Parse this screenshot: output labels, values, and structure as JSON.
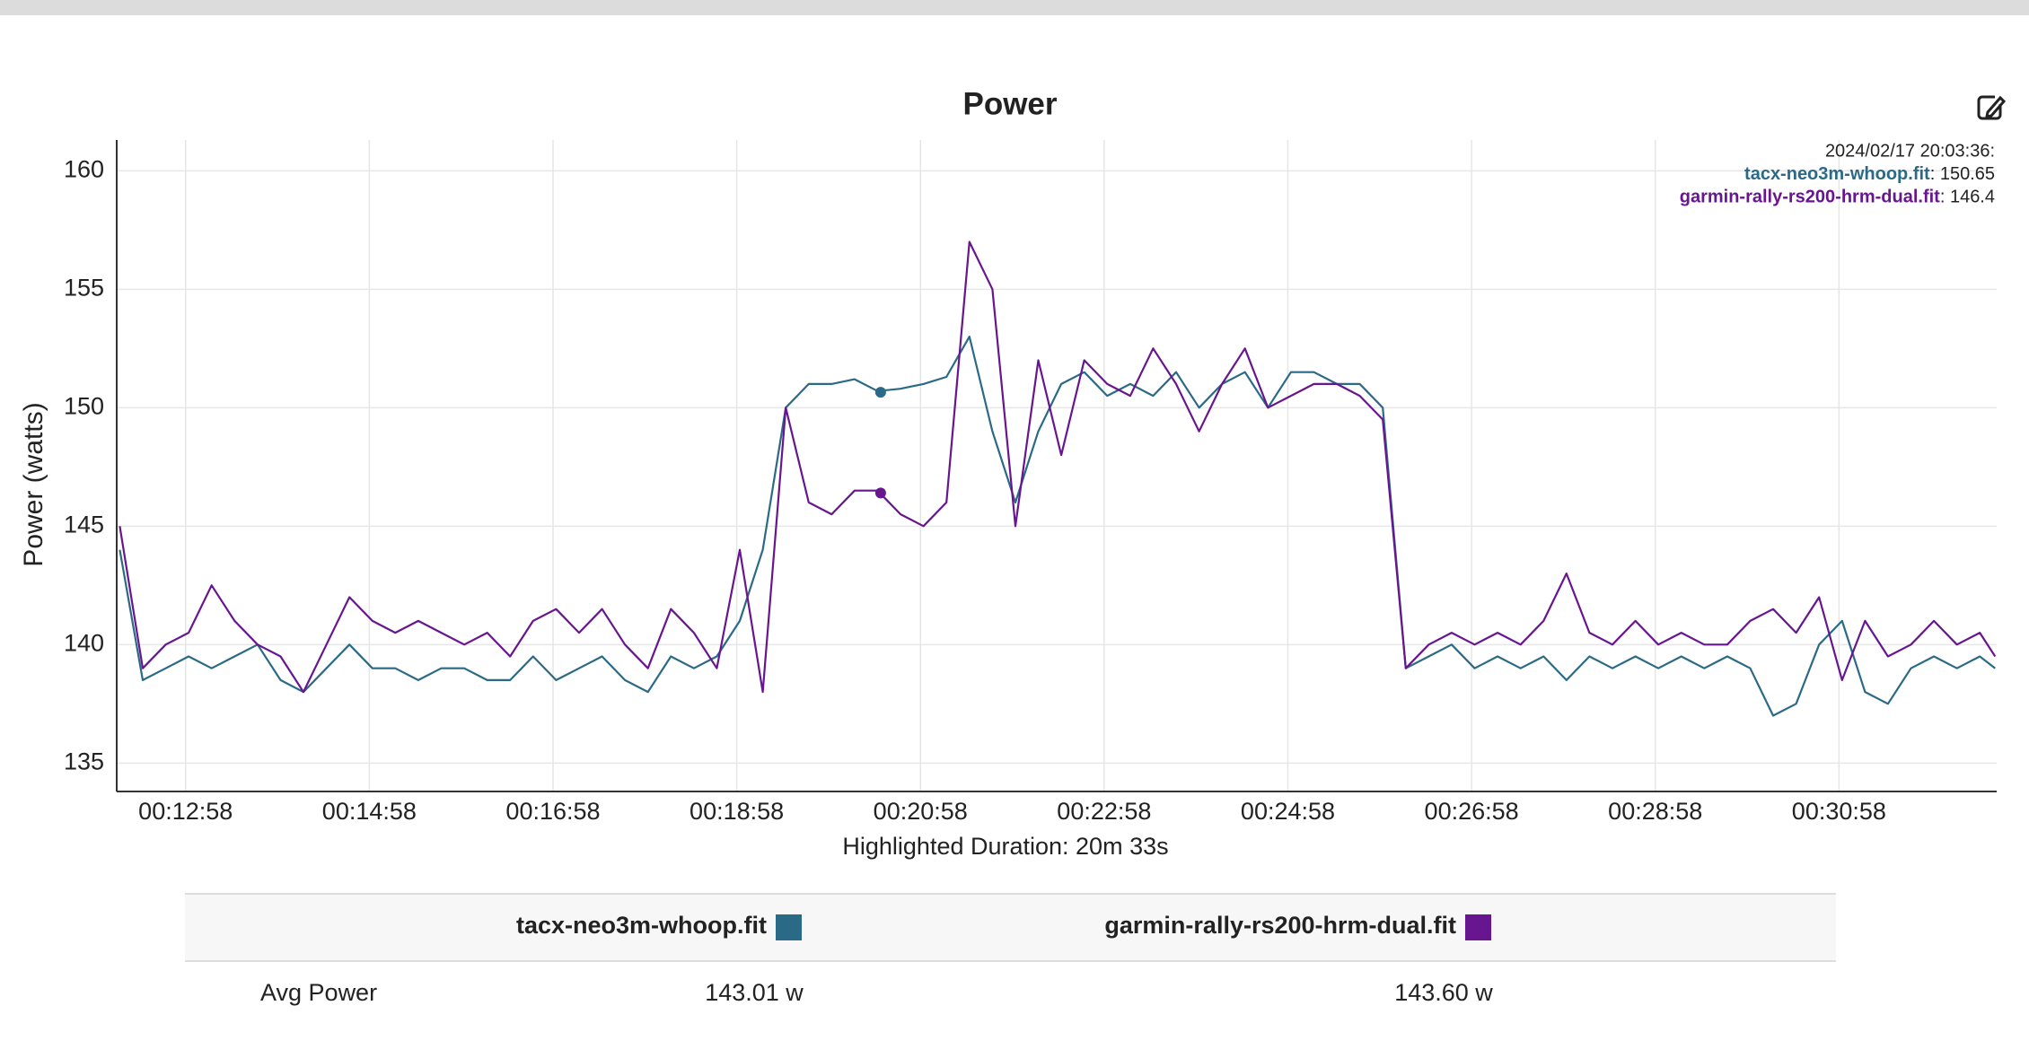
{
  "chart_data": {
    "type": "line",
    "title": "Power",
    "ylabel": "Power (watts)",
    "xlabel": "Highlighted Duration: 20m 33s",
    "x": [
      735,
      750,
      765,
      780,
      795,
      810,
      825,
      840,
      855,
      870,
      885,
      900,
      915,
      930,
      945,
      960,
      975,
      990,
      1005,
      1020,
      1035,
      1050,
      1065,
      1080,
      1095,
      1110,
      1125,
      1140,
      1155,
      1170,
      1185,
      1200,
      1215,
      1230,
      1245,
      1260,
      1275,
      1290,
      1305,
      1320,
      1335,
      1350,
      1365,
      1380,
      1395,
      1410,
      1425,
      1440,
      1455,
      1470,
      1485,
      1500,
      1515,
      1530,
      1545,
      1560,
      1575,
      1590,
      1605,
      1620,
      1635,
      1650,
      1665,
      1680,
      1695,
      1710,
      1725,
      1740,
      1755,
      1770,
      1785,
      1800,
      1815,
      1830,
      1845,
      1860,
      1875,
      1890,
      1905,
      1920,
      1935,
      1950,
      1960
    ],
    "series": [
      {
        "name": "tacx-neo3m-whoop.fit",
        "color": "#2b6a87",
        "values": [
          144,
          138.5,
          139,
          139.5,
          139,
          139.5,
          140,
          138.5,
          138,
          139,
          140,
          139,
          139,
          138.5,
          139,
          139,
          138.5,
          138.5,
          139.5,
          138.5,
          139,
          139.5,
          138.5,
          138,
          139.5,
          139,
          139.5,
          141,
          144,
          150,
          151,
          151,
          151.2,
          150.7,
          150.8,
          151,
          151.3,
          153,
          149,
          146,
          149,
          151,
          151.5,
          150.5,
          151,
          150.5,
          151.5,
          150,
          151,
          151.5,
          150,
          151.5,
          151.5,
          151,
          151,
          150,
          139,
          139.5,
          140,
          139,
          139.5,
          139,
          139.5,
          138.5,
          139.5,
          139,
          139.5,
          139,
          139.5,
          139,
          139.5,
          139,
          137,
          137.5,
          140,
          141,
          138,
          137.5,
          139,
          139.5,
          139,
          139.5,
          139
        ]
      },
      {
        "name": "garmin-rally-rs200-hrm-dual.fit",
        "color": "#68168f",
        "values": [
          145,
          139,
          140,
          140.5,
          142.5,
          141,
          140,
          139.5,
          138,
          140,
          142,
          141,
          140.5,
          141,
          140.5,
          140,
          140.5,
          139.5,
          141,
          141.5,
          140.5,
          141.5,
          140,
          139,
          141.5,
          140.5,
          139,
          144,
          138,
          150,
          146,
          145.5,
          146.5,
          146.5,
          145.5,
          145,
          146,
          157,
          155,
          145,
          152,
          148,
          152,
          151,
          150.5,
          152.5,
          151,
          149,
          151,
          152.5,
          150,
          150.5,
          151,
          151,
          150.5,
          149.5,
          139,
          140,
          140.5,
          140,
          140.5,
          140,
          141,
          143,
          140.5,
          140,
          141,
          140,
          140.5,
          140,
          140,
          141,
          141.5,
          140.5,
          142,
          138.5,
          141,
          139.5,
          140,
          141,
          140,
          140.5,
          139.5
        ]
      }
    ],
    "xlim": [
      733,
      1961
    ],
    "ylim": [
      133.8,
      161.3
    ],
    "xticks": [
      {
        "value": 778,
        "label": "00:12:58"
      },
      {
        "value": 898,
        "label": "00:14:58"
      },
      {
        "value": 1018,
        "label": "00:16:58"
      },
      {
        "value": 1138,
        "label": "00:18:58"
      },
      {
        "value": 1258,
        "label": "00:20:58"
      },
      {
        "value": 1378,
        "label": "00:22:58"
      },
      {
        "value": 1498,
        "label": "00:24:58"
      },
      {
        "value": 1618,
        "label": "00:26:58"
      },
      {
        "value": 1738,
        "label": "00:28:58"
      },
      {
        "value": 1858,
        "label": "00:30:58"
      }
    ],
    "yticks": [
      135,
      140,
      145,
      150,
      155,
      160
    ],
    "grid": true,
    "hover": {
      "time": "2024/02/17 20:03:36:",
      "x": 1232,
      "values": [
        150.65,
        146.4
      ],
      "value_labels": [
        ": 150.65",
        ": 146.4"
      ]
    }
  },
  "table": {
    "row_label": "Avg Power",
    "values": [
      "143.01 w",
      "143.60 w"
    ]
  }
}
